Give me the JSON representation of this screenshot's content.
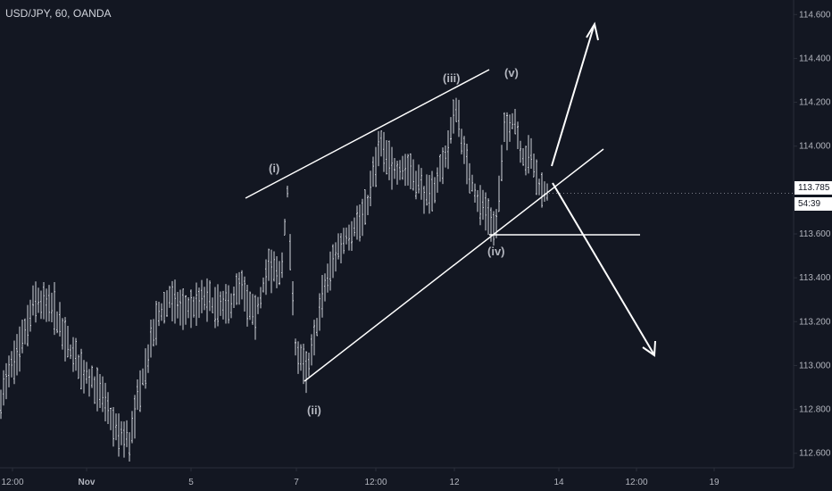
{
  "header": {
    "symbol_title": "USD/JPY, 60, OANDA"
  },
  "price_tags": {
    "current_price": "113.785",
    "countdown": "54:39"
  },
  "colors": {
    "background": "#131722",
    "bar": "#d1d4dc",
    "axis_text": "#b2b5be",
    "annotation": "#ffffff",
    "wave_label": "#b2b5be"
  },
  "chart_data": {
    "type": "ohlc",
    "title": "USD/JPY, 60, OANDA",
    "ylim": [
      112.55,
      114.65
    ],
    "y_ticks": [
      "114.600",
      "114.400",
      "114.200",
      "114.000",
      "113.800",
      "113.600",
      "113.400",
      "113.200",
      "113.000",
      "112.800",
      "112.600"
    ],
    "x_ticks": [
      "12:00",
      "Nov",
      "5",
      "7",
      "12:00",
      "12",
      "14",
      "12:00",
      "19"
    ],
    "current_price": 113.785,
    "wave_labels": [
      {
        "text": "(i)",
        "price": 113.84
      },
      {
        "text": "(ii)",
        "price": 112.82
      },
      {
        "text": "(iii)",
        "price": 114.3
      },
      {
        "text": "(v)",
        "price": 114.36
      },
      {
        "text": "(iv)",
        "price": 113.53
      }
    ],
    "price_path": [
      [
        0,
        112.85
      ],
      [
        20,
        113.05
      ],
      [
        40,
        113.3
      ],
      [
        60,
        113.25
      ],
      [
        80,
        113.05
      ],
      [
        100,
        112.95
      ],
      [
        115,
        112.85
      ],
      [
        130,
        112.7
      ],
      [
        145,
        112.65
      ],
      [
        160,
        112.95
      ],
      [
        175,
        113.2
      ],
      [
        190,
        113.3
      ],
      [
        210,
        113.25
      ],
      [
        230,
        113.3
      ],
      [
        250,
        113.25
      ],
      [
        270,
        113.35
      ],
      [
        285,
        113.2
      ],
      [
        300,
        113.45
      ],
      [
        315,
        113.4
      ],
      [
        322,
        113.8
      ],
      [
        330,
        113.1
      ],
      [
        345,
        112.95
      ],
      [
        360,
        113.3
      ],
      [
        375,
        113.5
      ],
      [
        390,
        113.6
      ],
      [
        410,
        113.7
      ],
      [
        425,
        114.0
      ],
      [
        440,
        113.9
      ],
      [
        460,
        113.9
      ],
      [
        480,
        113.75
      ],
      [
        495,
        113.9
      ],
      [
        505,
        114.05
      ],
      [
        512,
        114.2
      ],
      [
        520,
        113.95
      ],
      [
        535,
        113.75
      ],
      [
        548,
        113.7
      ],
      [
        555,
        113.6
      ],
      [
        565,
        114.05
      ],
      [
        575,
        114.15
      ],
      [
        585,
        113.95
      ],
      [
        595,
        113.95
      ],
      [
        605,
        113.8
      ],
      [
        615,
        113.78
      ]
    ]
  }
}
